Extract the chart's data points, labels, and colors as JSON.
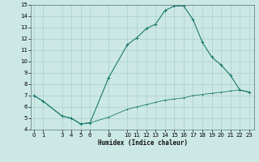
{
  "xlabel": "Humidex (Indice chaleur)",
  "background_color": "#cce8e5",
  "grid_color": "#aacfcc",
  "line_color": "#1a7a6e",
  "upper_x": [
    0,
    1,
    3,
    4,
    5,
    6,
    8,
    10,
    11,
    12,
    13,
    14,
    15,
    16,
    17,
    18,
    19,
    20,
    21,
    22,
    23
  ],
  "upper_y": [
    7.0,
    6.5,
    5.2,
    5.0,
    4.5,
    4.6,
    8.6,
    11.5,
    12.1,
    12.9,
    13.3,
    14.5,
    14.9,
    14.9,
    13.7,
    11.7,
    10.4,
    9.7,
    8.8,
    7.5,
    7.3
  ],
  "lower_x": [
    0,
    1,
    3,
    4,
    5,
    6,
    8,
    10,
    11,
    12,
    13,
    14,
    15,
    16,
    17,
    18,
    19,
    20,
    21,
    22,
    23
  ],
  "lower_y": [
    7.0,
    6.5,
    5.2,
    5.0,
    4.5,
    4.6,
    5.1,
    5.8,
    6.0,
    6.2,
    6.4,
    6.6,
    6.7,
    6.8,
    7.0,
    7.1,
    7.2,
    7.3,
    7.4,
    7.5,
    7.3
  ],
  "ylim_min": 4,
  "ylim_max": 15,
  "yticks": [
    4,
    5,
    6,
    7,
    8,
    9,
    10,
    11,
    12,
    13,
    14,
    15
  ],
  "xticks": [
    0,
    1,
    3,
    4,
    5,
    6,
    8,
    10,
    11,
    12,
    13,
    14,
    15,
    16,
    17,
    18,
    19,
    20,
    21,
    22,
    23
  ],
  "xlim_min": -0.3,
  "xlim_max": 23.5
}
